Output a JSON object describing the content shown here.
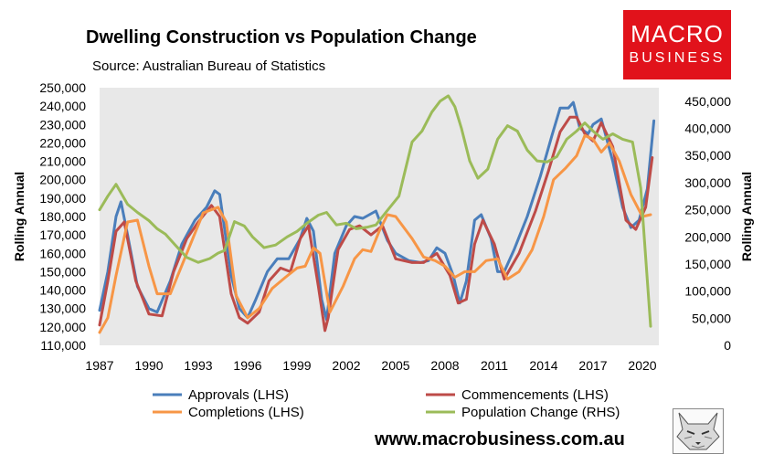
{
  "header": {
    "title": "Dwelling Construction vs Population Change",
    "subtitle": "Source: Australian Bureau of Statistics"
  },
  "logo": {
    "line1": "MACRO",
    "line2": "BUSINESS",
    "color": "#e1121b"
  },
  "footer": {
    "website": "www.macrobusiness.com.au"
  },
  "chart_data": {
    "type": "line",
    "title": "Dwelling Construction vs Population Change",
    "subtitle": "Source: Australian Bureau of Statistics",
    "ylabel_left": "Rolling Annual",
    "ylabel_right": "Rolling Annual",
    "grid": false,
    "legend_position": "bottom",
    "plot_background": "#e8e8e8",
    "xlim": [
      1987,
      2021
    ],
    "ylim_left": [
      110000,
      250000
    ],
    "ylim_right": [
      0,
      475000
    ],
    "x_ticks": [
      "1987",
      "1990",
      "1993",
      "1996",
      "1999",
      "2002",
      "2005",
      "2008",
      "2011",
      "2014",
      "2017",
      "2020"
    ],
    "x_tick_values": [
      1987,
      1990,
      1993,
      1996,
      1999,
      2002,
      2005,
      2008,
      2011,
      2014,
      2017,
      2020
    ],
    "y_ticks_left": [
      "110,000",
      "120,000",
      "130,000",
      "140,000",
      "150,000",
      "160,000",
      "170,000",
      "180,000",
      "190,000",
      "200,000",
      "210,000",
      "220,000",
      "230,000",
      "240,000",
      "250,000"
    ],
    "y_tick_values_left": [
      110000,
      120000,
      130000,
      140000,
      150000,
      160000,
      170000,
      180000,
      190000,
      200000,
      210000,
      220000,
      230000,
      240000,
      250000
    ],
    "y_ticks_right": [
      "0",
      "50,000",
      "100,000",
      "150,000",
      "200,000",
      "250,000",
      "300,000",
      "350,000",
      "400,000",
      "450,000"
    ],
    "y_tick_values_right": [
      0,
      50000,
      100000,
      150000,
      200000,
      250000,
      300000,
      350000,
      400000,
      450000
    ],
    "series": [
      {
        "name": "Approvals (LHS)",
        "axis": "left",
        "color": "#4a7ebb",
        "x": [
          1987,
          1987.5,
          1988,
          1988.3,
          1988.7,
          1989.3,
          1990,
          1990.5,
          1991.3,
          1992,
          1992.8,
          1993.5,
          1994,
          1994.3,
          1995,
          1995.5,
          1996,
          1996.5,
          1997.2,
          1997.8,
          1998.5,
          1999.2,
          1999.6,
          2000,
          2000.5,
          2000.8,
          2001.3,
          2002,
          2002.5,
          2003,
          2003.8,
          2004.5,
          2005,
          2005.8,
          2006.5,
          2007,
          2007.5,
          2008,
          2008.5,
          2008.9,
          2009.3,
          2009.8,
          2010.2,
          2010.8,
          2011.2,
          2011.6,
          2012.2,
          2013,
          2013.8,
          2014.5,
          2015,
          2015.5,
          2015.8,
          2016.2,
          2016.7,
          2017,
          2017.5,
          2018.2,
          2018.8,
          2019.3,
          2019.8,
          2020.3,
          2020.7
        ],
        "y": [
          129000,
          150000,
          180000,
          188000,
          170000,
          142000,
          130000,
          128000,
          145000,
          165000,
          178000,
          185000,
          194000,
          192000,
          148000,
          130000,
          125000,
          135000,
          150000,
          157000,
          157000,
          168000,
          179000,
          172000,
          135000,
          124000,
          160000,
          175000,
          180000,
          179000,
          183000,
          167000,
          160000,
          156000,
          155000,
          156000,
          163000,
          160000,
          148000,
          133000,
          145000,
          178000,
          181000,
          168000,
          150000,
          150000,
          162000,
          180000,
          202000,
          224000,
          239000,
          239000,
          242000,
          228000,
          225000,
          230000,
          233000,
          210000,
          185000,
          174000,
          178000,
          195000,
          232000
        ]
      },
      {
        "name": "Commencements (LHS)",
        "axis": "left",
        "color": "#be4b48",
        "x": [
          1987,
          1987.5,
          1988,
          1988.5,
          1989.2,
          1990,
          1990.8,
          1991.5,
          1992.3,
          1993,
          1993.8,
          1994.3,
          1995,
          1995.5,
          1996,
          1996.7,
          1997.3,
          1998,
          1998.6,
          1999.2,
          1999.7,
          2000.3,
          2000.7,
          2000.9,
          2001.5,
          2002.2,
          2002.8,
          2003.5,
          2004.2,
          2005,
          2006,
          2006.7,
          2007.5,
          2008.3,
          2008.8,
          2009.3,
          2009.8,
          2010.3,
          2011,
          2011.6,
          2012.5,
          2013.5,
          2014.3,
          2015,
          2015.6,
          2016,
          2016.5,
          2017,
          2017.5,
          2018.2,
          2019,
          2019.6,
          2020.2,
          2020.6
        ],
        "y": [
          121000,
          145000,
          172000,
          177000,
          145000,
          127000,
          126000,
          150000,
          168000,
          177000,
          186000,
          180000,
          138000,
          125000,
          122000,
          128000,
          145000,
          152000,
          150000,
          168000,
          175000,
          142000,
          118000,
          125000,
          162000,
          173000,
          175000,
          170000,
          175000,
          157000,
          155000,
          155000,
          160000,
          148000,
          133000,
          135000,
          165000,
          178000,
          165000,
          146000,
          160000,
          183000,
          205000,
          226000,
          234000,
          234000,
          225000,
          221000,
          231000,
          218000,
          178000,
          173000,
          185000,
          212000
        ]
      },
      {
        "name": "Completions (LHS)",
        "axis": "left",
        "color": "#f79646",
        "x": [
          1987,
          1987.5,
          1988,
          1988.7,
          1989.3,
          1990,
          1990.5,
          1991.3,
          1992.3,
          1993.3,
          1994.2,
          1994.7,
          1995.3,
          1996,
          1996.7,
          1997.5,
          1998.3,
          1999,
          1999.5,
          2000,
          2000.4,
          2001,
          2001.8,
          2002.5,
          2003,
          2003.5,
          2004,
          2004.5,
          2005,
          2006,
          2006.7,
          2007.4,
          2008,
          2008.6,
          2009.2,
          2009.8,
          2010.5,
          2011.2,
          2011.8,
          2012.5,
          2013.3,
          2014,
          2014.6,
          2015.3,
          2016,
          2016.5,
          2017,
          2017.5,
          2018,
          2018.6,
          2019.3,
          2020,
          2020.5
        ],
        "y": [
          117000,
          125000,
          148000,
          177000,
          178000,
          153000,
          138000,
          138000,
          160000,
          182000,
          185000,
          177000,
          137000,
          125000,
          130000,
          141000,
          147000,
          152000,
          153000,
          163000,
          160000,
          128000,
          142000,
          157000,
          162000,
          161000,
          172000,
          181000,
          180000,
          168000,
          158000,
          156000,
          153000,
          147000,
          150000,
          150000,
          156000,
          157000,
          146000,
          150000,
          162000,
          180000,
          200000,
          206000,
          213000,
          224000,
          222000,
          215000,
          220000,
          210000,
          192000,
          180000,
          181000
        ]
      },
      {
        "name": "Population Change (RHS)",
        "axis": "right",
        "color": "#9bbb59",
        "x": [
          1987,
          1987.5,
          1988,
          1988.7,
          1989.3,
          1990,
          1990.5,
          1991,
          1991.6,
          1992.3,
          1993,
          1993.7,
          1994.2,
          1994.6,
          1995.2,
          1995.8,
          1996.3,
          1997,
          1997.7,
          1998.4,
          1999,
          1999.6,
          2000.3,
          2000.8,
          2001.4,
          2002,
          2002.6,
          2003.3,
          2003.8,
          2004.4,
          2005.2,
          2006,
          2006.6,
          2007.2,
          2007.7,
          2008.2,
          2008.6,
          2009,
          2009.5,
          2010,
          2010.6,
          2011.2,
          2011.8,
          2012.4,
          2013,
          2013.6,
          2014.2,
          2014.8,
          2015.4,
          2016,
          2016.5,
          2017,
          2017.6,
          2018.2,
          2018.8,
          2019.4,
          2019.9,
          2020.3,
          2020.5
        ],
        "y": [
          250000,
          275000,
          297000,
          260000,
          245000,
          230000,
          215000,
          205000,
          185000,
          162000,
          153000,
          160000,
          170000,
          175000,
          228000,
          220000,
          200000,
          180000,
          185000,
          200000,
          210000,
          225000,
          240000,
          245000,
          222000,
          225000,
          215000,
          218000,
          222000,
          245000,
          275000,
          375000,
          395000,
          430000,
          450000,
          460000,
          440000,
          400000,
          340000,
          308000,
          325000,
          380000,
          405000,
          395000,
          360000,
          340000,
          338000,
          348000,
          380000,
          395000,
          410000,
          395000,
          380000,
          390000,
          380000,
          375000,
          290000,
          120000,
          35000
        ]
      }
    ]
  }
}
